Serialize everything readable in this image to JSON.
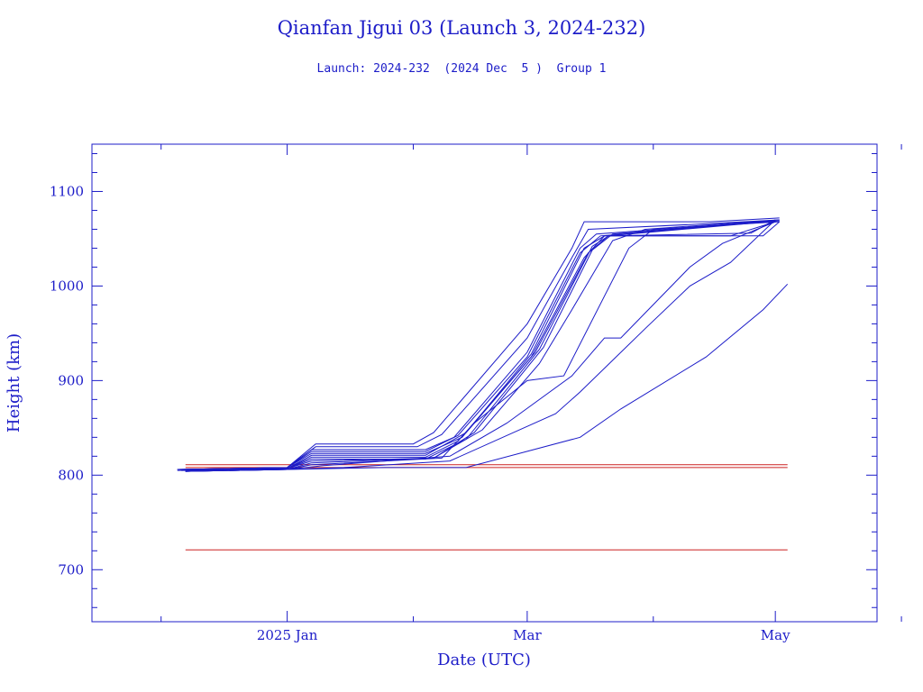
{
  "chart_data": {
    "type": "line",
    "title": "Qianfan Jigui 03 (Launch 3, 2024-232)",
    "subtitle": "Launch: 2024-232  (2024 Dec  5 )  Group 1",
    "xlabel": "Date (UTC)",
    "ylabel": "Height (km)",
    "xlim": [
      "2024-11-14",
      "2025-05-26"
    ],
    "ylim": [
      645,
      1150
    ],
    "yticks": [
      700,
      800,
      900,
      1000,
      1100
    ],
    "xtick_labels": [
      {
        "date": "2025-01-01",
        "label": "2025 Jan"
      },
      {
        "date": "2025-03-01",
        "label": "Mar"
      },
      {
        "date": "2025-05-01",
        "label": "May"
      }
    ],
    "grid": false,
    "legend": "none",
    "colors": {
      "axis": "#1c1cc8",
      "series": "#1c1cc8",
      "reference": "#cc2020"
    },
    "reference_lines": [
      {
        "y": 811,
        "x": [
          "2024-12-07",
          "2025-05-04"
        ]
      },
      {
        "y": 808,
        "x": [
          "2024-12-07",
          "2025-05-04"
        ]
      },
      {
        "y": 721,
        "x": [
          "2024-12-07",
          "2025-05-04"
        ]
      }
    ],
    "series": [
      {
        "points": [
          [
            "2024-12-05",
            805
          ],
          [
            "2025-01-01",
            808
          ],
          [
            "2025-01-08",
            833
          ],
          [
            "2025-02-01",
            833
          ],
          [
            "2025-02-06",
            845
          ],
          [
            "2025-03-01",
            960
          ],
          [
            "2025-03-12",
            1040
          ],
          [
            "2025-03-15",
            1068
          ],
          [
            "2025-04-15",
            1068
          ],
          [
            "2025-05-02",
            1072
          ]
        ]
      },
      {
        "points": [
          [
            "2024-12-05",
            806
          ],
          [
            "2025-01-01",
            808
          ],
          [
            "2025-01-08",
            830
          ],
          [
            "2025-02-02",
            830
          ],
          [
            "2025-02-08",
            843
          ],
          [
            "2025-03-01",
            945
          ],
          [
            "2025-03-12",
            1030
          ],
          [
            "2025-03-16",
            1060
          ],
          [
            "2025-04-10",
            1065
          ],
          [
            "2025-05-02",
            1070
          ]
        ]
      },
      {
        "points": [
          [
            "2024-12-05",
            806
          ],
          [
            "2025-01-01",
            808
          ],
          [
            "2025-01-07",
            827
          ],
          [
            "2025-02-04",
            827
          ],
          [
            "2025-02-11",
            840
          ],
          [
            "2025-03-01",
            930
          ],
          [
            "2025-03-14",
            1040
          ],
          [
            "2025-03-18",
            1055
          ],
          [
            "2025-05-01",
            1069
          ]
        ]
      },
      {
        "points": [
          [
            "2024-12-05",
            806
          ],
          [
            "2025-01-01",
            808
          ],
          [
            "2025-01-07",
            825
          ],
          [
            "2025-02-04",
            825
          ],
          [
            "2025-02-12",
            842
          ],
          [
            "2025-03-01",
            925
          ],
          [
            "2025-03-14",
            1035
          ],
          [
            "2025-03-19",
            1053
          ],
          [
            "2025-05-01",
            1069
          ]
        ]
      },
      {
        "points": [
          [
            "2024-12-06",
            806
          ],
          [
            "2025-01-01",
            808
          ],
          [
            "2025-01-07",
            823
          ],
          [
            "2025-02-04",
            823
          ],
          [
            "2025-02-13",
            840
          ],
          [
            "2025-03-02",
            928
          ],
          [
            "2025-03-15",
            1040
          ],
          [
            "2025-03-20",
            1053
          ],
          [
            "2025-04-28",
            1053
          ],
          [
            "2025-05-02",
            1068
          ]
        ]
      },
      {
        "points": [
          [
            "2024-12-06",
            806
          ],
          [
            "2025-01-01",
            807
          ],
          [
            "2025-01-07",
            821
          ],
          [
            "2025-02-04",
            821
          ],
          [
            "2025-02-14",
            845
          ],
          [
            "2025-03-02",
            925
          ],
          [
            "2025-03-15",
            1030
          ],
          [
            "2025-03-20",
            1053
          ],
          [
            "2025-04-20",
            1053
          ],
          [
            "2025-05-01",
            1068
          ]
        ]
      },
      {
        "points": [
          [
            "2024-12-06",
            805
          ],
          [
            "2025-01-01",
            807
          ],
          [
            "2025-01-07",
            819
          ],
          [
            "2025-02-04",
            819
          ],
          [
            "2025-02-12",
            836
          ],
          [
            "2025-03-03",
            930
          ],
          [
            "2025-03-16",
            1035
          ],
          [
            "2025-03-21",
            1053
          ],
          [
            "2025-04-25",
            1056
          ],
          [
            "2025-05-01",
            1070
          ]
        ]
      },
      {
        "points": [
          [
            "2024-12-06",
            805
          ],
          [
            "2025-01-01",
            807
          ],
          [
            "2025-01-07",
            817
          ],
          [
            "2025-02-04",
            817
          ],
          [
            "2025-02-14",
            838
          ],
          [
            "2025-03-04",
            933
          ],
          [
            "2025-03-17",
            1042
          ],
          [
            "2025-03-21",
            1053
          ],
          [
            "2025-05-02",
            1069
          ]
        ]
      },
      {
        "points": [
          [
            "2024-12-07",
            805
          ],
          [
            "2025-01-01",
            807
          ],
          [
            "2025-01-07",
            815
          ],
          [
            "2025-02-06",
            818
          ],
          [
            "2025-02-16",
            845
          ],
          [
            "2025-03-05",
            935
          ],
          [
            "2025-03-17",
            1038
          ],
          [
            "2025-03-22",
            1055
          ],
          [
            "2025-05-01",
            1069
          ]
        ]
      },
      {
        "points": [
          [
            "2024-12-07",
            804
          ],
          [
            "2025-01-01",
            806
          ],
          [
            "2025-01-07",
            813
          ],
          [
            "2025-02-06",
            818
          ],
          [
            "2025-02-18",
            848
          ],
          [
            "2025-03-04",
            918
          ],
          [
            "2025-03-12",
            975
          ],
          [
            "2025-03-22",
            1048
          ],
          [
            "2025-03-30",
            1060
          ],
          [
            "2025-05-02",
            1070
          ]
        ]
      },
      {
        "points": [
          [
            "2024-12-07",
            804
          ],
          [
            "2025-01-01",
            806
          ],
          [
            "2025-01-07",
            811
          ],
          [
            "2025-02-08",
            818
          ],
          [
            "2025-02-16",
            855
          ],
          [
            "2025-03-01",
            900
          ],
          [
            "2025-03-10",
            905
          ],
          [
            "2025-03-26",
            1040
          ],
          [
            "2025-04-01",
            1060
          ],
          [
            "2025-05-02",
            1068
          ]
        ]
      },
      {
        "points": [
          [
            "2024-12-07",
            804
          ],
          [
            "2025-01-01",
            806
          ],
          [
            "2025-01-10",
            810
          ],
          [
            "2025-02-10",
            820
          ],
          [
            "2025-02-24",
            855
          ],
          [
            "2025-03-12",
            905
          ],
          [
            "2025-03-20",
            945
          ],
          [
            "2025-03-24",
            945
          ],
          [
            "2025-04-10",
            1020
          ],
          [
            "2025-04-18",
            1045
          ],
          [
            "2025-05-01",
            1068
          ]
        ]
      },
      {
        "points": [
          [
            "2024-12-07",
            804
          ],
          [
            "2025-01-01",
            806
          ],
          [
            "2025-01-15",
            808
          ],
          [
            "2025-02-10",
            815
          ],
          [
            "2025-03-08",
            865
          ],
          [
            "2025-03-14",
            888
          ],
          [
            "2025-03-30",
            955
          ],
          [
            "2025-04-10",
            1000
          ],
          [
            "2025-04-20",
            1025
          ],
          [
            "2025-05-01",
            1070
          ]
        ]
      },
      {
        "points": [
          [
            "2024-12-07",
            804
          ],
          [
            "2025-01-01",
            806
          ],
          [
            "2025-01-25",
            808
          ],
          [
            "2025-02-14",
            808
          ],
          [
            "2025-03-14",
            840
          ],
          [
            "2025-03-24",
            870
          ],
          [
            "2025-04-14",
            925
          ],
          [
            "2025-04-28",
            975
          ],
          [
            "2025-05-04",
            1002
          ]
        ]
      }
    ]
  }
}
